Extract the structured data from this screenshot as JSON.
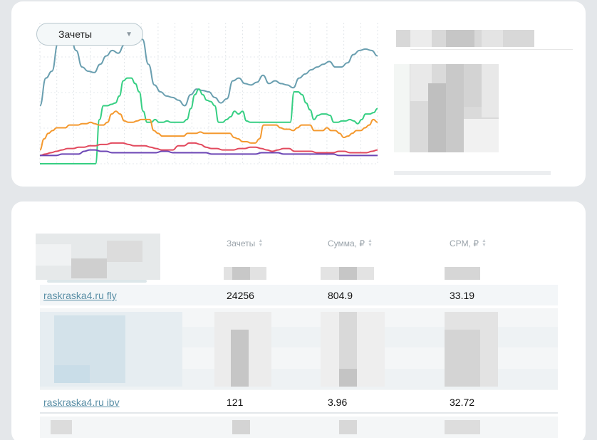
{
  "chart_select": {
    "value": "Зачеты"
  },
  "chart_data": {
    "type": "line",
    "series": [
      {
        "color": "#6a9fb0",
        "values": [
          40,
          60,
          65,
          85,
          95,
          92,
          80,
          68,
          65,
          64,
          70,
          76,
          80,
          78,
          84,
          86,
          87,
          88,
          70,
          55,
          50,
          47,
          46,
          44,
          40,
          48,
          52,
          51,
          50,
          46,
          42,
          45,
          58,
          60,
          56,
          55,
          57,
          62,
          56,
          58,
          56,
          55,
          53,
          60,
          63,
          66,
          68,
          70,
          72,
          68,
          68,
          71,
          77,
          80,
          81,
          80,
          76
        ]
      },
      {
        "color": "#36cf83",
        "values": [
          -2,
          -2,
          -2,
          -2,
          -2,
          -2,
          -2,
          -2,
          -2,
          -2,
          -2,
          -2,
          -2,
          -2,
          -2,
          30,
          40,
          40,
          41,
          42,
          47,
          58,
          60,
          60,
          56,
          50,
          36,
          28,
          28,
          30,
          28,
          28,
          29,
          28,
          28,
          28,
          28,
          30,
          38,
          48,
          52,
          48,
          44,
          43,
          40,
          28,
          28,
          30,
          32,
          36,
          34,
          36,
          29,
          28,
          28,
          28,
          28,
          28,
          28,
          28,
          28,
          28,
          28,
          28,
          50,
          50,
          48,
          42,
          37,
          30,
          33,
          34,
          34,
          33,
          28,
          28,
          29,
          29,
          30,
          29,
          27,
          30,
          34,
          34,
          35,
          38
        ]
      },
      {
        "color": "#f4992f",
        "values": [
          8,
          16,
          20,
          22,
          24,
          24,
          24,
          26,
          26,
          26,
          27,
          27,
          28,
          27,
          26,
          26,
          28,
          34,
          36,
          34,
          29,
          28,
          28,
          29,
          30,
          30,
          30,
          22,
          20,
          18,
          18,
          18,
          18,
          18,
          18,
          20,
          20,
          20,
          21,
          20,
          20,
          20,
          20,
          20,
          20,
          20,
          17,
          16,
          14,
          14,
          13,
          13,
          16,
          26,
          26,
          26,
          26,
          24,
          23,
          23,
          22,
          24,
          26,
          26,
          26,
          22,
          22,
          22,
          24,
          22,
          22,
          20,
          17,
          18,
          20,
          22,
          22,
          24,
          26,
          30,
          28
        ]
      },
      {
        "color": "#e24a5e",
        "values": [
          4,
          5,
          6,
          7,
          8,
          9,
          9,
          10,
          10,
          11,
          11,
          12,
          12,
          13,
          13,
          13,
          12,
          11,
          11,
          11,
          10,
          9,
          8,
          8,
          8,
          11,
          11,
          13,
          13,
          12,
          10,
          9,
          9,
          8,
          8,
          8,
          9,
          9,
          10,
          10,
          9,
          8,
          7,
          8,
          9,
          9,
          7,
          7,
          7,
          7,
          6,
          6,
          6,
          6,
          7,
          7,
          6,
          6,
          6,
          6,
          7,
          8
        ]
      },
      {
        "color": "#6c46b5",
        "values": [
          4,
          4,
          4,
          4,
          5,
          5,
          5,
          5,
          7,
          8,
          8,
          7,
          7,
          6,
          6,
          6,
          6,
          6,
          6,
          6,
          6,
          6,
          7,
          7,
          6,
          6,
          6,
          6,
          6,
          6,
          6,
          5,
          5,
          5,
          5,
          5,
          5,
          5,
          5,
          5,
          6,
          6,
          6,
          6,
          5,
          5,
          5,
          5,
          5,
          5,
          5,
          5,
          5,
          5,
          4,
          4,
          4,
          4,
          4,
          4,
          4,
          4
        ]
      }
    ],
    "grid": true,
    "legend": "none"
  },
  "table": {
    "headers": {
      "zachety": "Зачеты",
      "summa": "Сумма, ₽",
      "cpm": "CPM, ₽"
    },
    "rows": [
      {
        "site": "raskraska4.ru fly",
        "zachety": "24256",
        "summa": "804.9",
        "cpm": "33.19"
      },
      {
        "site": "raskraska4.ru ibv",
        "zachety": "121",
        "summa": "3.96",
        "cpm": "32.72"
      }
    ]
  }
}
